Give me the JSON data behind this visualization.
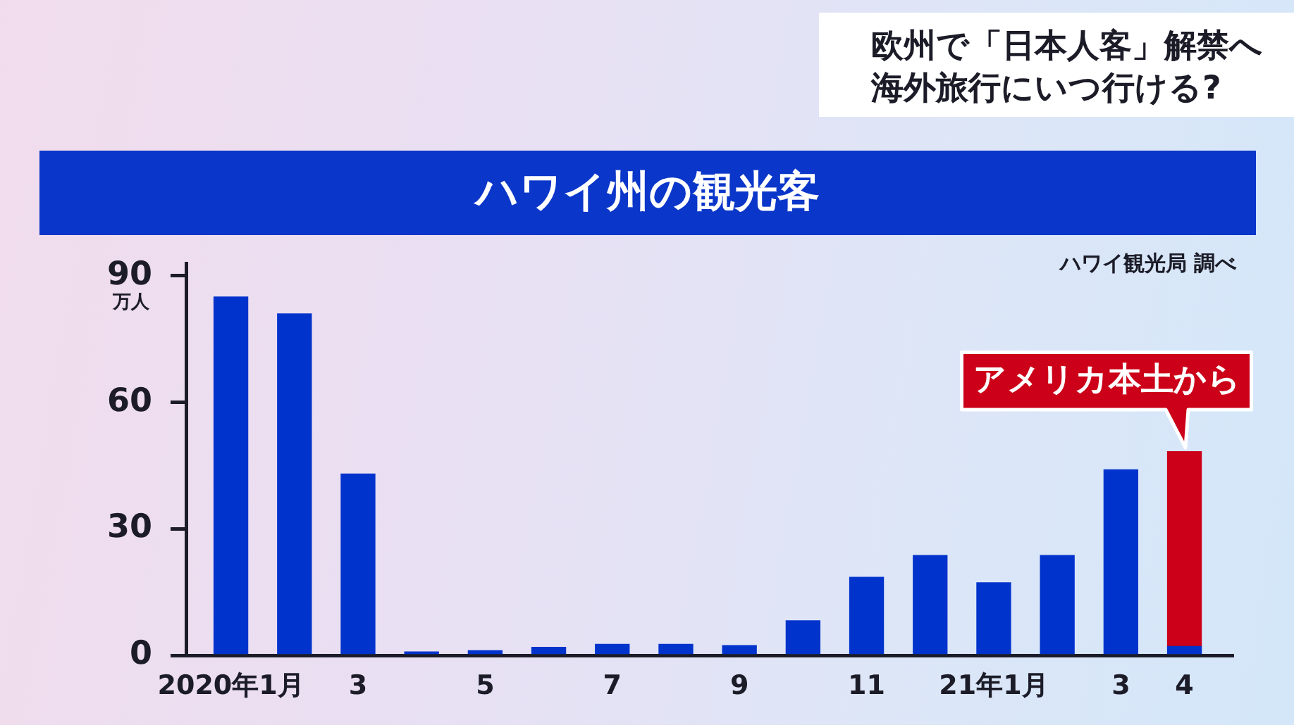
{
  "chart_data": {
    "type": "bar",
    "title": "ハワイ州の観光客",
    "ylabel": "万人",
    "categories": [
      "2020年1月",
      null,
      "3",
      null,
      "5",
      null,
      "7",
      null,
      "9",
      null,
      "11",
      null,
      "21年1月",
      null,
      "3",
      "4"
    ],
    "series": [
      {
        "color": "#0033cc",
        "values": [
          85,
          81,
          43,
          0.8,
          1.1,
          1.9,
          2.6,
          2.6,
          2.3,
          8.2,
          18.5,
          23.7,
          17.2,
          23.7,
          44,
          2.1
        ]
      },
      {
        "name": "アメリカ本土から",
        "color": "#cc0018",
        "values": [
          null,
          null,
          null,
          null,
          null,
          null,
          null,
          null,
          null,
          null,
          null,
          null,
          null,
          null,
          null,
          46.2
        ]
      }
    ],
    "stacked": true,
    "ylim": [
      0,
      93
    ],
    "yticks": [
      0,
      30,
      60,
      90
    ],
    "annotations": [
      "ハワイ観光局 調べ",
      "欧州で「日本人客」解禁へ",
      "海外旅行にいつ行ける?"
    ]
  }
}
